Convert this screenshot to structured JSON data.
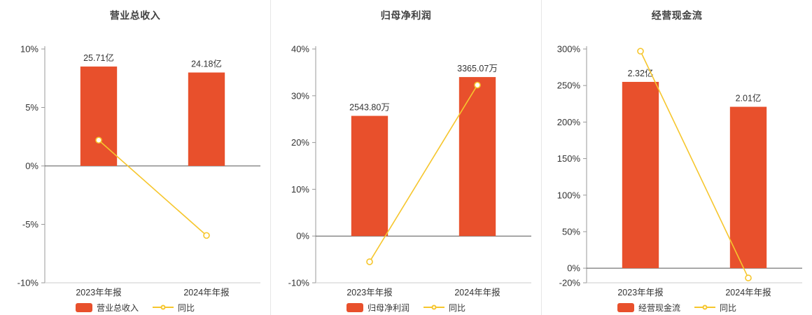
{
  "colors": {
    "bar": "#e8502c",
    "line": "#f6c62d",
    "marker_fill": "#ffffff",
    "axis_text": "#333333",
    "title_text": "#404040",
    "zero_line": "#555555",
    "axis_line": "#999999",
    "baseline": "#cccccc",
    "divider": "#e6e6e6"
  },
  "chart_data": [
    {
      "type": "bar+line",
      "title": "营业总收入",
      "categories": [
        "2023年年报",
        "2024年年报"
      ],
      "ylim": [
        -10,
        10
      ],
      "ytick_values": [
        -10,
        -5,
        0,
        5,
        10
      ],
      "ytick_labels": [
        "-10%",
        "-5%",
        "0%",
        "5%",
        "10%"
      ],
      "legend_position": "bottom",
      "series": [
        {
          "name": "营业总收入",
          "type": "bar",
          "value_labels": [
            "25.71亿",
            "24.18亿"
          ],
          "plotted_values": [
            8.5,
            7.99
          ]
        },
        {
          "name": "同比",
          "type": "line",
          "unit": "%",
          "values": [
            2.2,
            -5.95
          ]
        }
      ]
    },
    {
      "type": "bar+line",
      "title": "归母净利润",
      "categories": [
        "2023年年报",
        "2024年年报"
      ],
      "ylim": [
        -10,
        40
      ],
      "ytick_values": [
        -10,
        0,
        10,
        20,
        30,
        40
      ],
      "ytick_labels": [
        "-10%",
        "0%",
        "10%",
        "20%",
        "30%",
        "40%"
      ],
      "legend_position": "bottom",
      "series": [
        {
          "name": "归母净利润",
          "type": "bar",
          "value_labels": [
            "2543.80万",
            "3365.07万"
          ],
          "plotted_values": [
            25.7,
            34.0
          ]
        },
        {
          "name": "同比",
          "type": "line",
          "unit": "%",
          "values": [
            -5.5,
            32.29
          ]
        }
      ]
    },
    {
      "type": "bar+line",
      "title": "经营现金流",
      "categories": [
        "2023年年报",
        "2024年年报"
      ],
      "ylim": [
        -20,
        300
      ],
      "ytick_values": [
        -20,
        0,
        50,
        100,
        150,
        200,
        250,
        300
      ],
      "ytick_labels": [
        "-20%",
        "0%",
        "50%",
        "100%",
        "150%",
        "200%",
        "250%",
        "300%"
      ],
      "legend_position": "bottom",
      "series": [
        {
          "name": "经营现金流",
          "type": "bar",
          "value_labels": [
            "2.32亿",
            "2.01亿"
          ],
          "plotted_values": [
            255.0,
            220.9
          ]
        },
        {
          "name": "同比",
          "type": "line",
          "unit": "%",
          "values": [
            297.0,
            -13.36
          ]
        }
      ]
    }
  ]
}
